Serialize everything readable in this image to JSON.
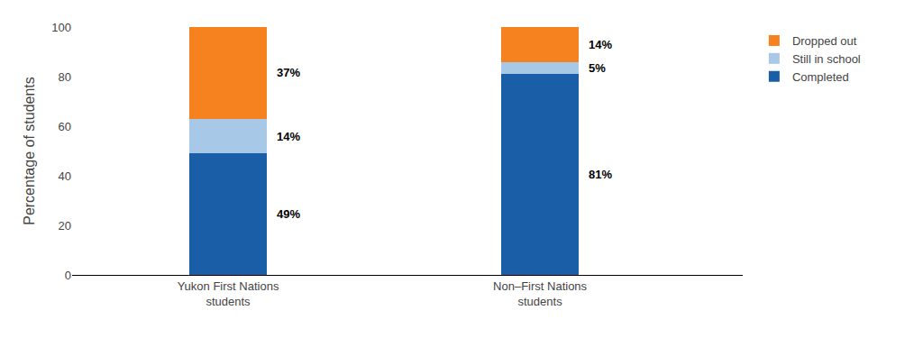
{
  "chart_data": {
    "type": "bar",
    "stacked": true,
    "categories": [
      "Yukon First Nations\nstudents",
      "Non–First Nations\nstudents"
    ],
    "series": [
      {
        "name": "Completed",
        "color": "#1a5ea8",
        "values": [
          49,
          81
        ],
        "value_labels": [
          "49%",
          "81%"
        ]
      },
      {
        "name": "Still in school",
        "color": "#a8c8e8",
        "values": [
          14,
          5
        ],
        "value_labels": [
          "14%",
          "5%"
        ]
      },
      {
        "name": "Dropped out",
        "color": "#f5821f",
        "values": [
          37,
          14
        ],
        "value_labels": [
          "37%",
          "14%"
        ]
      }
    ],
    "ylabel": "Percentage of students",
    "ylim": [
      0,
      100
    ],
    "yticks": [
      0,
      20,
      40,
      60,
      80,
      100
    ],
    "grid": false,
    "legend": "upper right",
    "data_labels": true
  }
}
